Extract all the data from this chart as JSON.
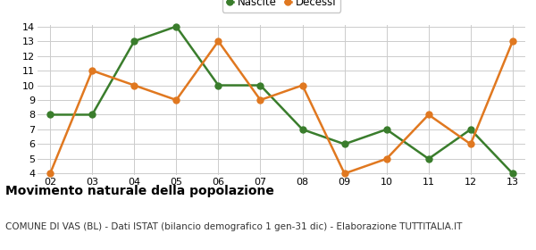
{
  "years": [
    "02",
    "03",
    "04",
    "05",
    "06",
    "07",
    "08",
    "09",
    "10",
    "11",
    "12",
    "13"
  ],
  "nascite": [
    8,
    8,
    13,
    14,
    10,
    10,
    7,
    6,
    7,
    5,
    7,
    4
  ],
  "decessi": [
    4,
    11,
    10,
    9,
    13,
    9,
    10,
    4,
    5,
    8,
    6,
    13
  ],
  "nascite_color": "#3a7d2c",
  "decessi_color": "#e07820",
  "nascite_label": "Nascite",
  "decessi_label": "Decessi",
  "ylim_min": 4,
  "ylim_max": 14,
  "yticks": [
    4,
    5,
    6,
    7,
    8,
    9,
    10,
    11,
    12,
    13,
    14
  ],
  "title": "Movimento naturale della popolazione",
  "subtitle": "COMUNE DI VAS (BL) - Dati ISTAT (bilancio demografico 1 gen-31 dic) - Elaborazione TUTTITALIA.IT",
  "title_fontsize": 10,
  "subtitle_fontsize": 7.5,
  "background_color": "#ffffff",
  "grid_color": "#cccccc",
  "marker_size": 5,
  "line_width": 1.8,
  "tick_fontsize": 8
}
